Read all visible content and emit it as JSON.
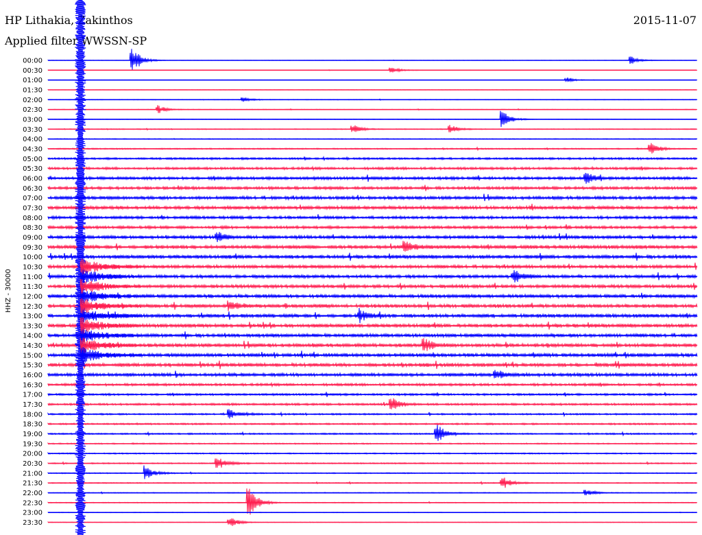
{
  "header": {
    "station": "HP Lithakia, Zakinthos",
    "filter": "Applied filter WWSSN-SP",
    "date": "2015-11-07"
  },
  "colors": {
    "even_trace": "#0000ff",
    "odd_trace": "#ff1e50",
    "background": "#ffffff",
    "text": "#000000"
  },
  "chart_data": {
    "type": "line",
    "title": "HP Lithakia, Zakinthos",
    "subtitle": "Applied filter WWSSN-SP",
    "ylabel": "HHZ - 30000",
    "xlabel": "",
    "grid": false,
    "legend": "none",
    "row_labels": [
      "00:00",
      "00:30",
      "01:00",
      "01:30",
      "02:00",
      "02:30",
      "03:00",
      "03:30",
      "04:00",
      "04:30",
      "05:00",
      "05:30",
      "06:00",
      "06:30",
      "07:00",
      "07:30",
      "08:00",
      "08:30",
      "09:00",
      "09:30",
      "10:00",
      "10:30",
      "11:00",
      "11:30",
      "12:00",
      "12:30",
      "13:00",
      "13:30",
      "14:00",
      "14:30",
      "15:00",
      "15:30",
      "16:00",
      "16:30",
      "17:00",
      "17:30",
      "18:00",
      "18:30",
      "19:00",
      "19:30",
      "20:00",
      "20:30",
      "21:00",
      "21:30",
      "22:00",
      "22:30",
      "23:00",
      "23:30"
    ],
    "row_noise_level": [
      0.1,
      0.1,
      0.1,
      0.1,
      0.15,
      0.15,
      0.15,
      0.2,
      0.2,
      0.3,
      0.5,
      0.6,
      0.7,
      0.7,
      0.8,
      0.8,
      0.7,
      0.7,
      0.8,
      0.9,
      0.9,
      0.8,
      0.8,
      0.8,
      0.9,
      0.9,
      0.9,
      0.9,
      0.9,
      0.9,
      0.9,
      0.9,
      0.8,
      0.6,
      0.5,
      0.5,
      0.4,
      0.4,
      0.35,
      0.3,
      0.3,
      0.3,
      0.25,
      0.25,
      0.2,
      0.2,
      0.15,
      0.15
    ],
    "events": [
      {
        "row": 0,
        "x_fraction": 0.13,
        "amplitude": 3.0
      },
      {
        "row": 0,
        "x_fraction": 0.9,
        "amplitude": 0.8
      },
      {
        "row": 1,
        "x_fraction": 0.53,
        "amplitude": 0.8
      },
      {
        "row": 2,
        "x_fraction": 0.8,
        "amplitude": 0.6
      },
      {
        "row": 4,
        "x_fraction": 0.3,
        "amplitude": 0.6
      },
      {
        "row": 5,
        "x_fraction": 0.17,
        "amplitude": 0.9
      },
      {
        "row": 6,
        "x_fraction": 0.7,
        "amplitude": 2.0
      },
      {
        "row": 7,
        "x_fraction": 0.47,
        "amplitude": 1.0
      },
      {
        "row": 7,
        "x_fraction": 0.62,
        "amplitude": 1.0
      },
      {
        "row": 9,
        "x_fraction": 0.93,
        "amplitude": 1.2
      },
      {
        "row": 12,
        "x_fraction": 0.83,
        "amplitude": 1.2
      },
      {
        "row": 18,
        "x_fraction": 0.26,
        "amplitude": 1.4
      },
      {
        "row": 19,
        "x_fraction": 0.55,
        "amplitude": 1.6
      },
      {
        "row": 22,
        "x_fraction": 0.72,
        "amplitude": 1.4
      },
      {
        "row": 25,
        "x_fraction": 0.28,
        "amplitude": 1.3
      },
      {
        "row": 26,
        "x_fraction": 0.48,
        "amplitude": 1.4
      },
      {
        "row": 29,
        "x_fraction": 0.58,
        "amplitude": 1.5
      },
      {
        "row": 32,
        "x_fraction": 0.69,
        "amplitude": 1.2
      },
      {
        "row": 35,
        "x_fraction": 0.53,
        "amplitude": 1.6
      },
      {
        "row": 36,
        "x_fraction": 0.28,
        "amplitude": 1.0
      },
      {
        "row": 38,
        "x_fraction": 0.6,
        "amplitude": 2.2
      },
      {
        "row": 41,
        "x_fraction": 0.26,
        "amplitude": 1.8
      },
      {
        "row": 42,
        "x_fraction": 0.15,
        "amplitude": 1.6
      },
      {
        "row": 43,
        "x_fraction": 0.7,
        "amplitude": 1.6
      },
      {
        "row": 44,
        "x_fraction": 0.83,
        "amplitude": 0.8
      },
      {
        "row": 45,
        "x_fraction": 0.31,
        "amplitude": 3.5
      },
      {
        "row": 47,
        "x_fraction": 0.28,
        "amplitude": 1.2
      }
    ],
    "large_event": {
      "x_fraction": 0.05,
      "start_row": 0,
      "peak_row": 24
    }
  }
}
